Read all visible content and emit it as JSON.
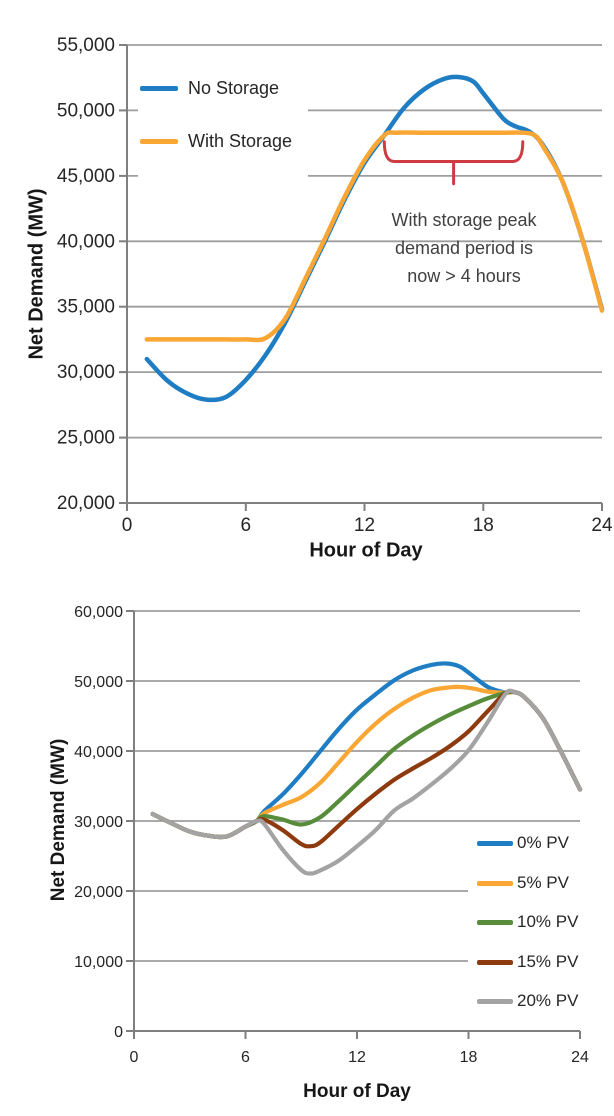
{
  "chart_data": [
    {
      "type": "line",
      "title": "",
      "xlabel": "Hour of Day",
      "ylabel": "Net Demand (MW)",
      "xlim": [
        0,
        24
      ],
      "ylim": [
        20000,
        55000
      ],
      "x_ticks": [
        0,
        6,
        12,
        18,
        24
      ],
      "x_tick_labels": [
        "0",
        "6",
        "12",
        "18",
        "24"
      ],
      "y_ticks": [
        20000,
        25000,
        30000,
        35000,
        40000,
        45000,
        50000,
        55000
      ],
      "y_tick_labels": [
        "20,000",
        "25,000",
        "30,000",
        "35,000",
        "40,000",
        "45,000",
        "50,000",
        "55,000"
      ],
      "grid": "horizontal",
      "legend_position": "top-left",
      "series": [
        {
          "name": "No Storage",
          "color": "#1f7dc4",
          "points": [
            [
              1,
              31000
            ],
            [
              2,
              29400
            ],
            [
              3,
              28400
            ],
            [
              4,
              27900
            ],
            [
              5,
              28100
            ],
            [
              6,
              29400
            ],
            [
              7,
              31300
            ],
            [
              8,
              33800
            ],
            [
              9,
              36900
            ],
            [
              10,
              40000
            ],
            [
              11,
              43200
            ],
            [
              12,
              46000
            ],
            [
              13,
              48100
            ],
            [
              14,
              50200
            ],
            [
              15,
              51600
            ],
            [
              16,
              52400
            ],
            [
              16.8,
              52550
            ],
            [
              17.5,
              52200
            ],
            [
              18,
              51300
            ],
            [
              19,
              49400
            ],
            [
              19.6,
              48800
            ],
            [
              20.3,
              48400
            ],
            [
              21,
              47400
            ],
            [
              22,
              44600
            ],
            [
              23,
              40200
            ],
            [
              24,
              34800
            ]
          ]
        },
        {
          "name": "With Storage",
          "color": "#faa634",
          "points": [
            [
              1,
              32500
            ],
            [
              2,
              32500
            ],
            [
              3,
              32500
            ],
            [
              4,
              32500
            ],
            [
              5,
              32500
            ],
            [
              6,
              32500
            ],
            [
              7,
              32600
            ],
            [
              8,
              34100
            ],
            [
              9,
              37100
            ],
            [
              10,
              40200
            ],
            [
              11,
              43400
            ],
            [
              12,
              46200
            ],
            [
              13,
              48100
            ],
            [
              13.6,
              48300
            ],
            [
              15,
              48300
            ],
            [
              16,
              48300
            ],
            [
              17,
              48300
            ],
            [
              18,
              48300
            ],
            [
              19,
              48300
            ],
            [
              20,
              48300
            ],
            [
              20.6,
              48100
            ],
            [
              21,
              47300
            ],
            [
              22,
              44600
            ],
            [
              23,
              40200
            ],
            [
              24,
              34700
            ]
          ]
        }
      ],
      "annotation": {
        "lines": [
          "With storage peak",
          "demand period is",
          "now > 4 hours"
        ],
        "color": "#3f3f3f"
      },
      "brace": {
        "from_hour": 13,
        "to_hour": 20,
        "arm_top_mw": 47600,
        "bar_mw": 46100,
        "tip_mw": 44400,
        "color": "#ce3b43"
      }
    },
    {
      "type": "line",
      "title": "",
      "xlabel": "Hour of Day",
      "ylabel": "Net Demand (MW)",
      "xlim": [
        0,
        24
      ],
      "ylim": [
        0,
        60000
      ],
      "x_ticks": [
        0,
        6,
        12,
        18,
        24
      ],
      "x_tick_labels": [
        "0",
        "6",
        "12",
        "18",
        "24"
      ],
      "y_ticks": [
        0,
        10000,
        20000,
        30000,
        40000,
        50000,
        60000
      ],
      "y_tick_labels": [
        "0",
        "10,000",
        "20,000",
        "30,000",
        "40,000",
        "50,000",
        "60,000"
      ],
      "grid": "horizontal",
      "legend_position": "bottom-right",
      "series": [
        {
          "name": "0% PV",
          "color": "#1f7dc4",
          "points": [
            [
              1,
              31000
            ],
            [
              2,
              29700
            ],
            [
              3,
              28500
            ],
            [
              4,
              27900
            ],
            [
              5,
              27800
            ],
            [
              6,
              29200
            ],
            [
              6.6,
              30000
            ],
            [
              7,
              31400
            ],
            [
              8,
              33800
            ],
            [
              9,
              36700
            ],
            [
              10,
              39900
            ],
            [
              11,
              43100
            ],
            [
              12,
              45900
            ],
            [
              13,
              48100
            ],
            [
              14,
              50100
            ],
            [
              15,
              51500
            ],
            [
              16,
              52300
            ],
            [
              16.8,
              52500
            ],
            [
              17.5,
              52100
            ],
            [
              18,
              51200
            ],
            [
              19,
              49200
            ],
            [
              19.6,
              48600
            ],
            [
              20,
              48350
            ],
            [
              20.5,
              48400
            ],
            [
              21,
              47700
            ],
            [
              22,
              44700
            ],
            [
              23,
              39800
            ],
            [
              24,
              34500
            ]
          ]
        },
        {
          "name": "5% PV",
          "color": "#faa634",
          "points": [
            [
              1,
              31000
            ],
            [
              2,
              29700
            ],
            [
              3,
              28500
            ],
            [
              4,
              27900
            ],
            [
              5,
              27800
            ],
            [
              6,
              29200
            ],
            [
              6.6,
              30000
            ],
            [
              7,
              31100
            ],
            [
              8,
              32300
            ],
            [
              9,
              33400
            ],
            [
              10,
              35400
            ],
            [
              11,
              38300
            ],
            [
              12,
              41300
            ],
            [
              13,
              43900
            ],
            [
              14,
              46000
            ],
            [
              15,
              47600
            ],
            [
              16,
              48700
            ],
            [
              17,
              49100
            ],
            [
              17.6,
              49150
            ],
            [
              18.3,
              48900
            ],
            [
              19,
              48500
            ],
            [
              20,
              48300
            ],
            [
              20.5,
              48400
            ],
            [
              21,
              47700
            ],
            [
              22,
              44700
            ],
            [
              23,
              39800
            ],
            [
              24,
              34500
            ]
          ]
        },
        {
          "name": "10% PV",
          "color": "#578d3a",
          "points": [
            [
              1,
              31000
            ],
            [
              2,
              29700
            ],
            [
              3,
              28500
            ],
            [
              4,
              27900
            ],
            [
              5,
              27800
            ],
            [
              6,
              29200
            ],
            [
              6.6,
              30000
            ],
            [
              7,
              30700
            ],
            [
              8,
              30200
            ],
            [
              9,
              29500
            ],
            [
              10,
              30500
            ],
            [
              11,
              32800
            ],
            [
              12,
              35300
            ],
            [
              13,
              37800
            ],
            [
              14,
              40300
            ],
            [
              15,
              42200
            ],
            [
              16,
              43800
            ],
            [
              17,
              45200
            ],
            [
              18,
              46400
            ],
            [
              19,
              47500
            ],
            [
              20,
              48300
            ],
            [
              20.5,
              48400
            ],
            [
              21,
              47700
            ],
            [
              22,
              44700
            ],
            [
              23,
              39800
            ],
            [
              24,
              34500
            ]
          ]
        },
        {
          "name": "15% PV",
          "color": "#8e3a0f",
          "points": [
            [
              1,
              31000
            ],
            [
              2,
              29700
            ],
            [
              3,
              28500
            ],
            [
              4,
              27900
            ],
            [
              5,
              27800
            ],
            [
              6,
              29200
            ],
            [
              6.6,
              30000
            ],
            [
              7,
              30200
            ],
            [
              8,
              28700
            ],
            [
              9,
              26700
            ],
            [
              9.5,
              26400
            ],
            [
              10,
              26900
            ],
            [
              11,
              29300
            ],
            [
              12,
              31700
            ],
            [
              13,
              33900
            ],
            [
              14,
              35900
            ],
            [
              15,
              37500
            ],
            [
              16,
              39000
            ],
            [
              17,
              40700
            ],
            [
              18,
              42800
            ],
            [
              19,
              45600
            ],
            [
              20,
              48300
            ],
            [
              20.5,
              48400
            ],
            [
              21,
              47700
            ],
            [
              22,
              44700
            ],
            [
              23,
              39800
            ],
            [
              24,
              34500
            ]
          ]
        },
        {
          "name": "20% PV",
          "color": "#a3a3a3",
          "points": [
            [
              1,
              31000
            ],
            [
              2,
              29700
            ],
            [
              3,
              28500
            ],
            [
              4,
              27900
            ],
            [
              5,
              27800
            ],
            [
              6,
              29200
            ],
            [
              6.6,
              30000
            ],
            [
              7,
              29600
            ],
            [
              8,
              25900
            ],
            [
              9,
              23000
            ],
            [
              9.5,
              22500
            ],
            [
              10,
              22900
            ],
            [
              11,
              24300
            ],
            [
              12,
              26400
            ],
            [
              13,
              28700
            ],
            [
              14,
              31500
            ],
            [
              15,
              33200
            ],
            [
              16,
              35200
            ],
            [
              17,
              37400
            ],
            [
              18,
              40100
            ],
            [
              19,
              44000
            ],
            [
              20,
              48200
            ],
            [
              20.5,
              48400
            ],
            [
              21,
              47700
            ],
            [
              22,
              44700
            ],
            [
              23,
              39800
            ],
            [
              24,
              34500
            ]
          ]
        }
      ]
    }
  ]
}
